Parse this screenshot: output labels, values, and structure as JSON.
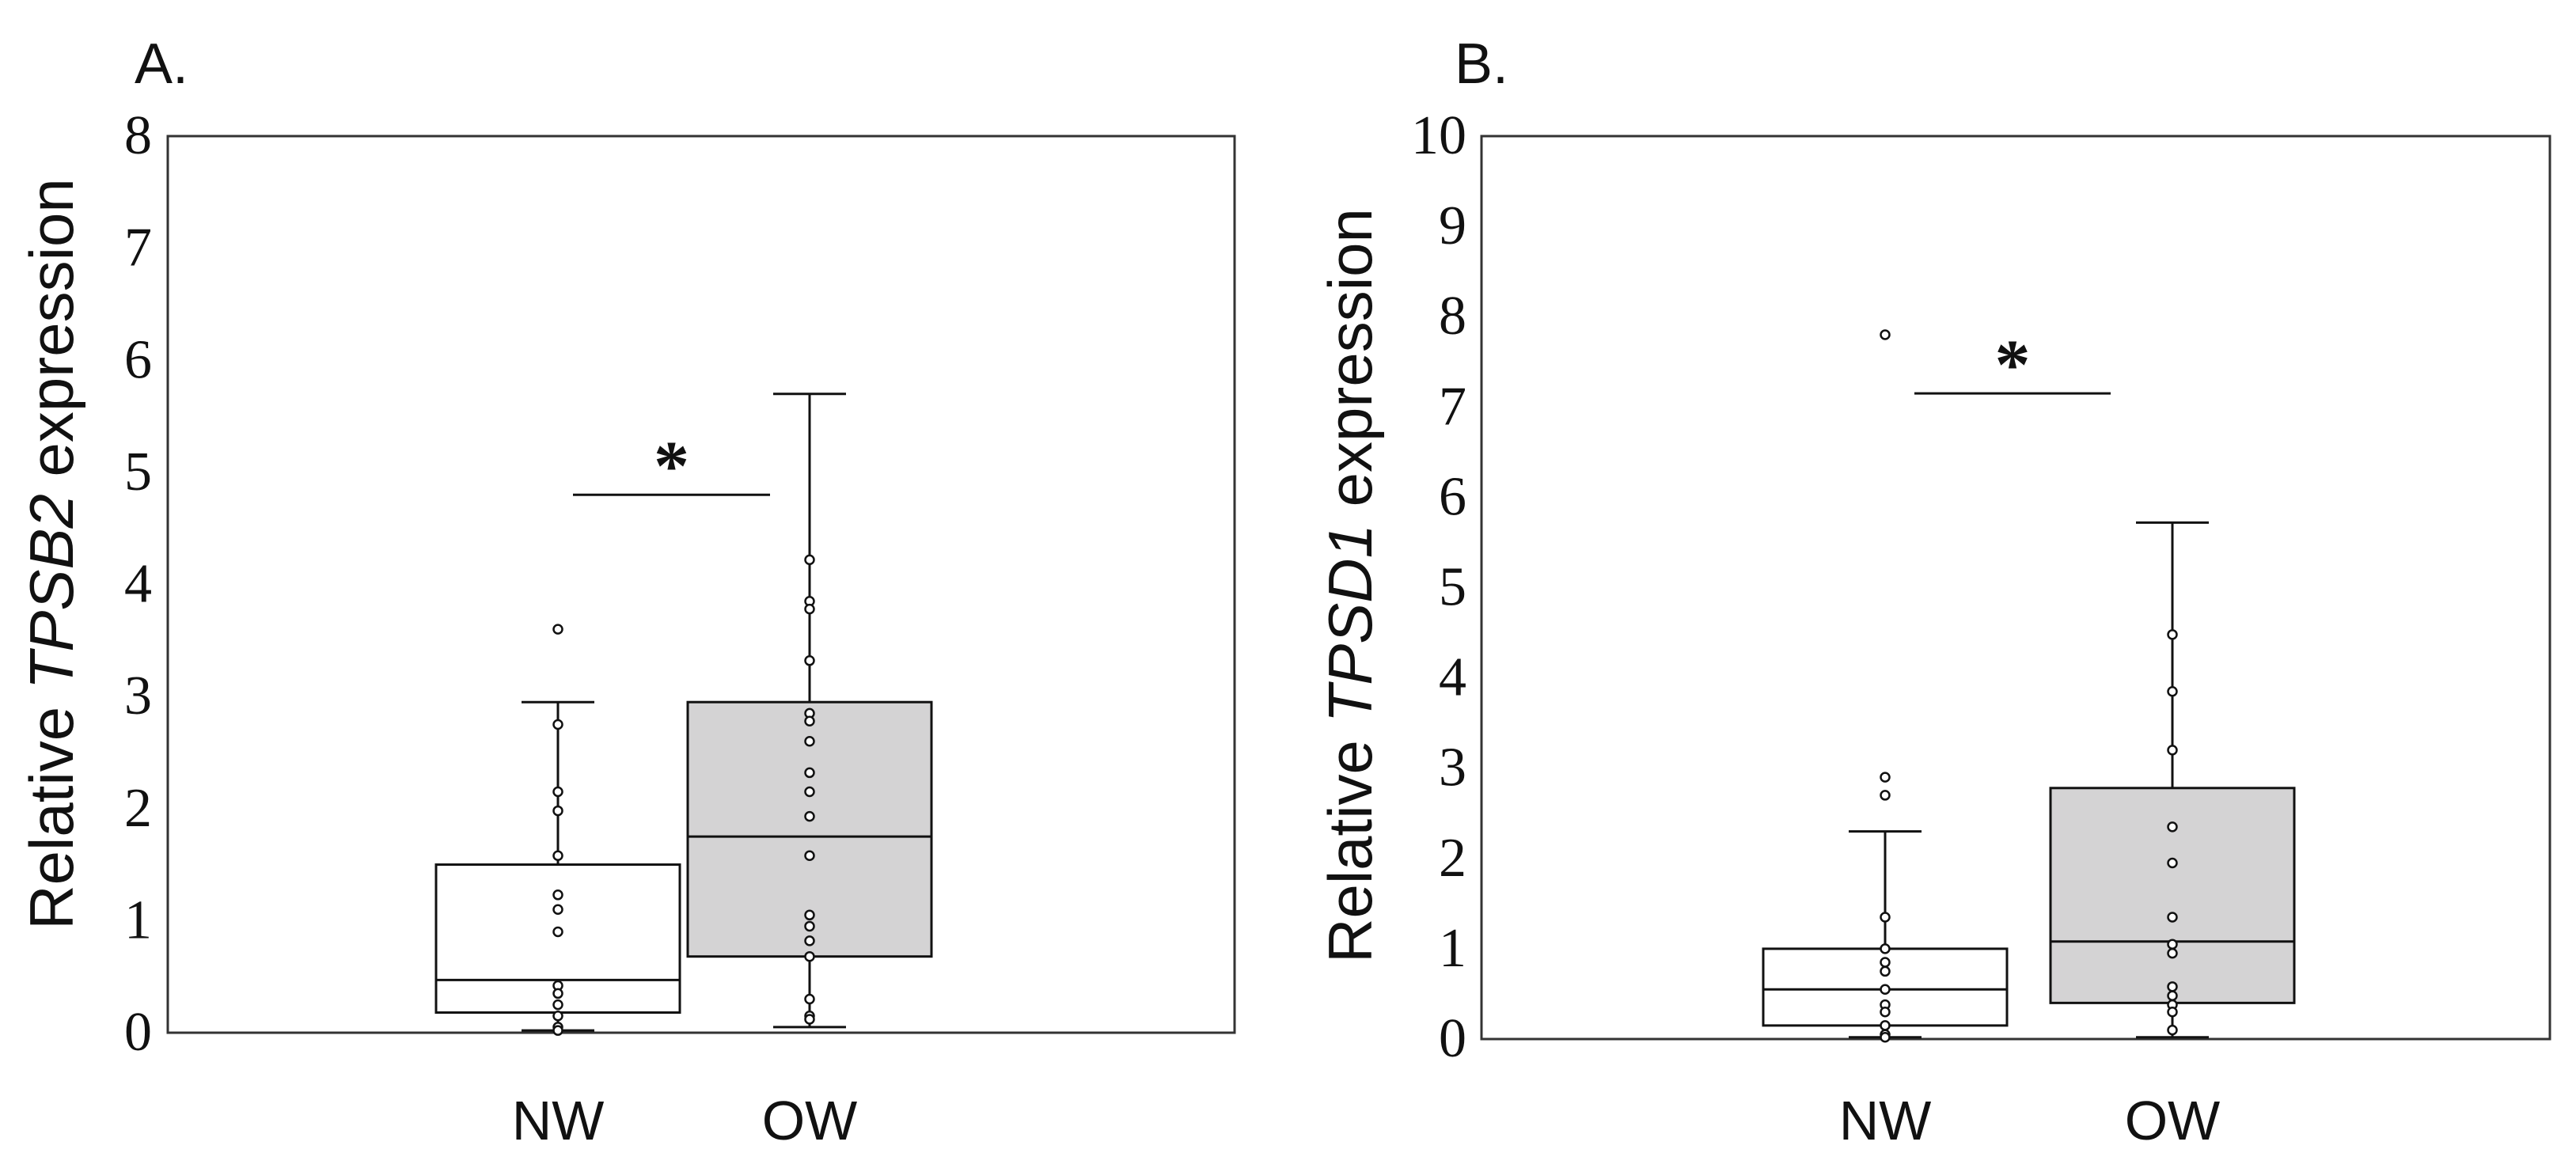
{
  "chart_data": [
    {
      "type": "box",
      "panel_label": "A.",
      "ylabel_prefix": "Relative ",
      "ylabel_gene": "TPSB2",
      "ylabel_suffix": " expression",
      "ylim": [
        0,
        8
      ],
      "yticks": [
        "0",
        "1",
        "2",
        "3",
        "4",
        "5",
        "6",
        "7",
        "8"
      ],
      "categories": [
        "NW",
        "OW"
      ],
      "significance": "*",
      "colors": {
        "NW": "#ffffff",
        "OW": "#d4d3d4"
      },
      "boxes": [
        {
          "name": "NW",
          "min": 0.02,
          "q1": 0.18,
          "median": 0.47,
          "q3": 1.5,
          "max": 2.95,
          "points": [
            3.6,
            2.75,
            2.15,
            1.98,
            1.58,
            1.23,
            1.1,
            0.9,
            0.42,
            0.35,
            0.25,
            0.15,
            0.05,
            0.02
          ]
        },
        {
          "name": "OW",
          "min": 0.05,
          "q1": 0.68,
          "median": 1.75,
          "q3": 2.95,
          "max": 5.7,
          "points": [
            4.22,
            3.85,
            3.78,
            3.32,
            2.85,
            2.78,
            2.6,
            2.32,
            2.15,
            1.93,
            1.58,
            1.05,
            0.95,
            0.82,
            0.68,
            0.3,
            0.15,
            0.12
          ]
        }
      ]
    },
    {
      "type": "box",
      "panel_label": "B.",
      "ylabel_prefix": "Relative ",
      "ylabel_gene": "TPSD1",
      "ylabel_suffix": " expression",
      "ylim": [
        0,
        10
      ],
      "yticks": [
        "0",
        "1",
        "2",
        "3",
        "4",
        "5",
        "6",
        "7",
        "8",
        "9",
        "10"
      ],
      "categories": [
        "NW",
        "OW"
      ],
      "significance": "*",
      "colors": {
        "NW": "#ffffff",
        "OW": "#d4d3d4"
      },
      "boxes": [
        {
          "name": "NW",
          "min": 0.02,
          "q1": 0.15,
          "median": 0.55,
          "q3": 1.0,
          "max": 2.3,
          "points": [
            7.8,
            2.9,
            2.7,
            1.35,
            1.0,
            0.85,
            0.75,
            0.55,
            0.38,
            0.3,
            0.15,
            0.05,
            0.02
          ]
        },
        {
          "name": "OW",
          "min": 0.02,
          "q1": 0.4,
          "median": 1.08,
          "q3": 2.78,
          "max": 5.72,
          "points": [
            4.48,
            3.85,
            3.2,
            2.35,
            1.95,
            1.35,
            1.05,
            0.95,
            0.58,
            0.48,
            0.38,
            0.3,
            0.1
          ]
        }
      ]
    }
  ]
}
